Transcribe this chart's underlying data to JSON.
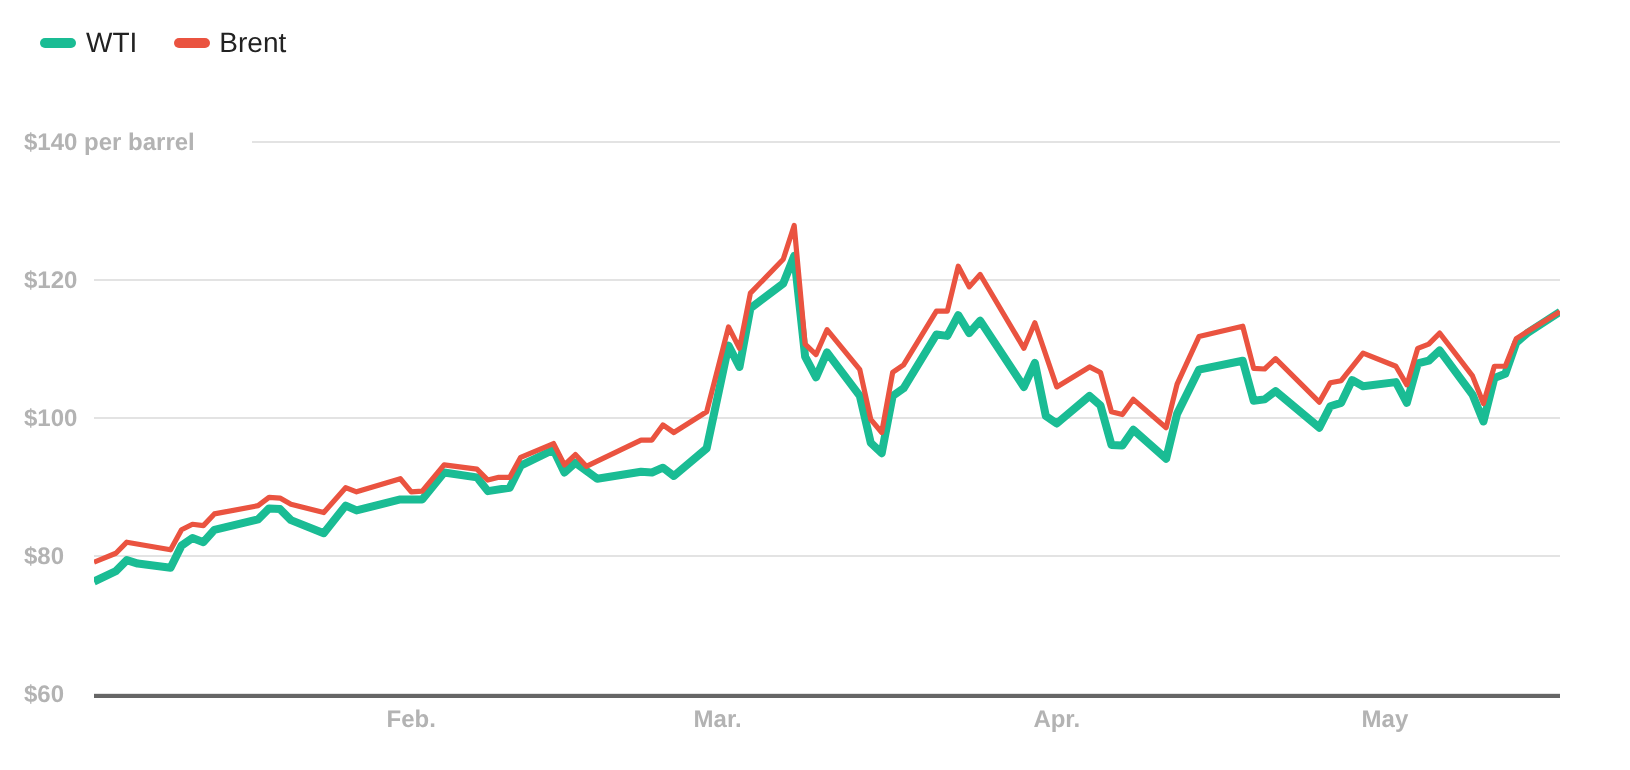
{
  "chart_data": {
    "type": "line",
    "legend": "top left",
    "grid": "y",
    "marker": "none",
    "xlim": [
      "--01-03",
      "--05-17"
    ],
    "xticks": [
      {
        "value": "--02-01",
        "label": "Feb."
      },
      {
        "value": "--03-01",
        "label": "Mar."
      },
      {
        "value": "--04-01",
        "label": "Apr."
      },
      {
        "value": "--05-01",
        "label": "May"
      }
    ],
    "ylim": [
      60,
      140
    ],
    "yticks": [
      {
        "value": 60,
        "label": "$60"
      },
      {
        "value": 80,
        "label": "$80"
      },
      {
        "value": 100,
        "label": "$100"
      },
      {
        "value": 120,
        "label": "$120"
      },
      {
        "value": 140,
        "label": "$140 per barrel"
      }
    ],
    "series": [
      {
        "name": "WTI",
        "color": "#1abc94",
        "x": [
          "--01-03",
          "--01-05",
          "--01-06",
          "--01-07",
          "--01-10",
          "--01-11",
          "--01-12",
          "--01-13",
          "--01-14",
          "--01-18",
          "--01-19",
          "--01-20",
          "--01-21",
          "--01-24",
          "--01-26",
          "--01-27",
          "--01-31",
          "--02-02",
          "--02-04",
          "--02-07",
          "--02-08",
          "--02-10",
          "--02-11",
          "--02-14",
          "--02-15",
          "--02-16",
          "--02-18",
          "--02-22",
          "--02-23",
          "--02-24",
          "--02-25",
          "--02-28",
          "--03-02",
          "--03-03",
          "--03-04",
          "--03-07",
          "--03-08",
          "--03-09",
          "--03-10",
          "--03-11",
          "--03-14",
          "--03-15",
          "--03-16",
          "--03-17",
          "--03-18",
          "--03-21",
          "--03-22",
          "--03-23",
          "--03-24",
          "--03-25",
          "--03-29",
          "--03-30",
          "--03-31",
          "--04-01",
          "--04-04",
          "--04-05",
          "--04-06",
          "--04-07",
          "--04-08",
          "--04-11",
          "--04-12",
          "--04-14",
          "--04-18",
          "--04-19",
          "--04-20",
          "--04-21",
          "--04-25",
          "--04-26",
          "--04-27",
          "--04-28",
          "--04-29",
          "--05-02",
          "--05-03",
          "--05-04",
          "--05-05",
          "--05-06",
          "--05-09",
          "--05-10",
          "--05-11",
          "--05-12",
          "--05-13",
          "--05-14",
          "--05-17"
        ],
        "values": [
          76.3,
          77.8,
          79.4,
          78.9,
          78.3,
          81.5,
          82.6,
          82.0,
          83.8,
          85.3,
          86.9,
          86.8,
          85.2,
          83.3,
          87.3,
          86.6,
          88.2,
          88.2,
          92.1,
          91.4,
          89.4,
          89.9,
          93.1,
          95.4,
          92.1,
          93.5,
          91.2,
          92.2,
          92.1,
          92.8,
          91.6,
          95.6,
          110.5,
          107.4,
          115.9,
          119.5,
          123.5,
          108.9,
          105.9,
          109.5,
          103.2,
          96.4,
          94.9,
          103.2,
          104.3,
          112.1,
          111.9,
          114.9,
          112.3,
          114.1,
          104.5,
          108.0,
          100.3,
          99.2,
          103.2,
          101.8,
          96.1,
          96.0,
          98.3,
          94.1,
          100.6,
          107.0,
          108.3,
          102.5,
          102.7,
          103.9,
          98.6,
          101.7,
          102.2,
          105.5,
          104.6,
          105.2,
          102.2,
          107.9,
          108.3,
          109.8,
          103.4,
          99.5,
          105.8,
          106.4,
          110.9,
          112.3,
          115.4
        ]
      },
      {
        "name": "Brent",
        "color": "#ea5340",
        "x": [
          "--01-03",
          "--01-05",
          "--01-06",
          "--01-10",
          "--01-11",
          "--01-12",
          "--01-13",
          "--01-14",
          "--01-18",
          "--01-19",
          "--01-20",
          "--01-21",
          "--01-24",
          "--01-26",
          "--01-27",
          "--01-31",
          "--02-01",
          "--02-02",
          "--02-04",
          "--02-07",
          "--02-08",
          "--02-09",
          "--02-10",
          "--02-11",
          "--02-14",
          "--02-15",
          "--02-16",
          "--02-17",
          "--02-22",
          "--02-23",
          "--02-24",
          "--02-25",
          "--02-28",
          "--03-02",
          "--03-03",
          "--03-04",
          "--03-07",
          "--03-08",
          "--03-09",
          "--03-10",
          "--03-11",
          "--03-14",
          "--03-15",
          "--03-16",
          "--03-17",
          "--03-18",
          "--03-21",
          "--03-22",
          "--03-23",
          "--03-24",
          "--03-25",
          "--03-29",
          "--03-30",
          "--04-01",
          "--04-04",
          "--04-05",
          "--04-06",
          "--04-07",
          "--04-08",
          "--04-11",
          "--04-12",
          "--04-14",
          "--04-18",
          "--04-19",
          "--04-20",
          "--04-21",
          "--04-25",
          "--04-26",
          "--04-27",
          "--04-29",
          "--05-02",
          "--05-03",
          "--05-04",
          "--05-05",
          "--05-06",
          "--05-09",
          "--05-10",
          "--05-11",
          "--05-12",
          "--05-13",
          "--05-14",
          "--05-17"
        ],
        "values": [
          79.1,
          80.4,
          82.0,
          80.9,
          83.8,
          84.6,
          84.4,
          86.1,
          87.3,
          88.5,
          88.4,
          87.5,
          86.3,
          89.9,
          89.3,
          91.2,
          89.3,
          89.4,
          93.2,
          92.6,
          91.0,
          91.4,
          91.4,
          94.3,
          96.3,
          93.2,
          94.7,
          93.0,
          96.8,
          96.8,
          99.0,
          97.9,
          100.9,
          113.2,
          110.1,
          118.1,
          123.0,
          127.9,
          110.7,
          109.2,
          112.8,
          107.0,
          99.8,
          97.9,
          106.6,
          107.7,
          115.5,
          115.5,
          122.0,
          119.0,
          120.8,
          110.1,
          113.8,
          104.5,
          107.4,
          106.6,
          100.9,
          100.5,
          102.7,
          98.6,
          104.9,
          111.8,
          113.3,
          107.2,
          107.1,
          108.6,
          102.3,
          105.1,
          105.4,
          109.4,
          107.5,
          104.8,
          110.1,
          110.7,
          112.3,
          106.1,
          102.1,
          107.5,
          107.5,
          111.5,
          112.5,
          115.4
        ]
      }
    ]
  }
}
